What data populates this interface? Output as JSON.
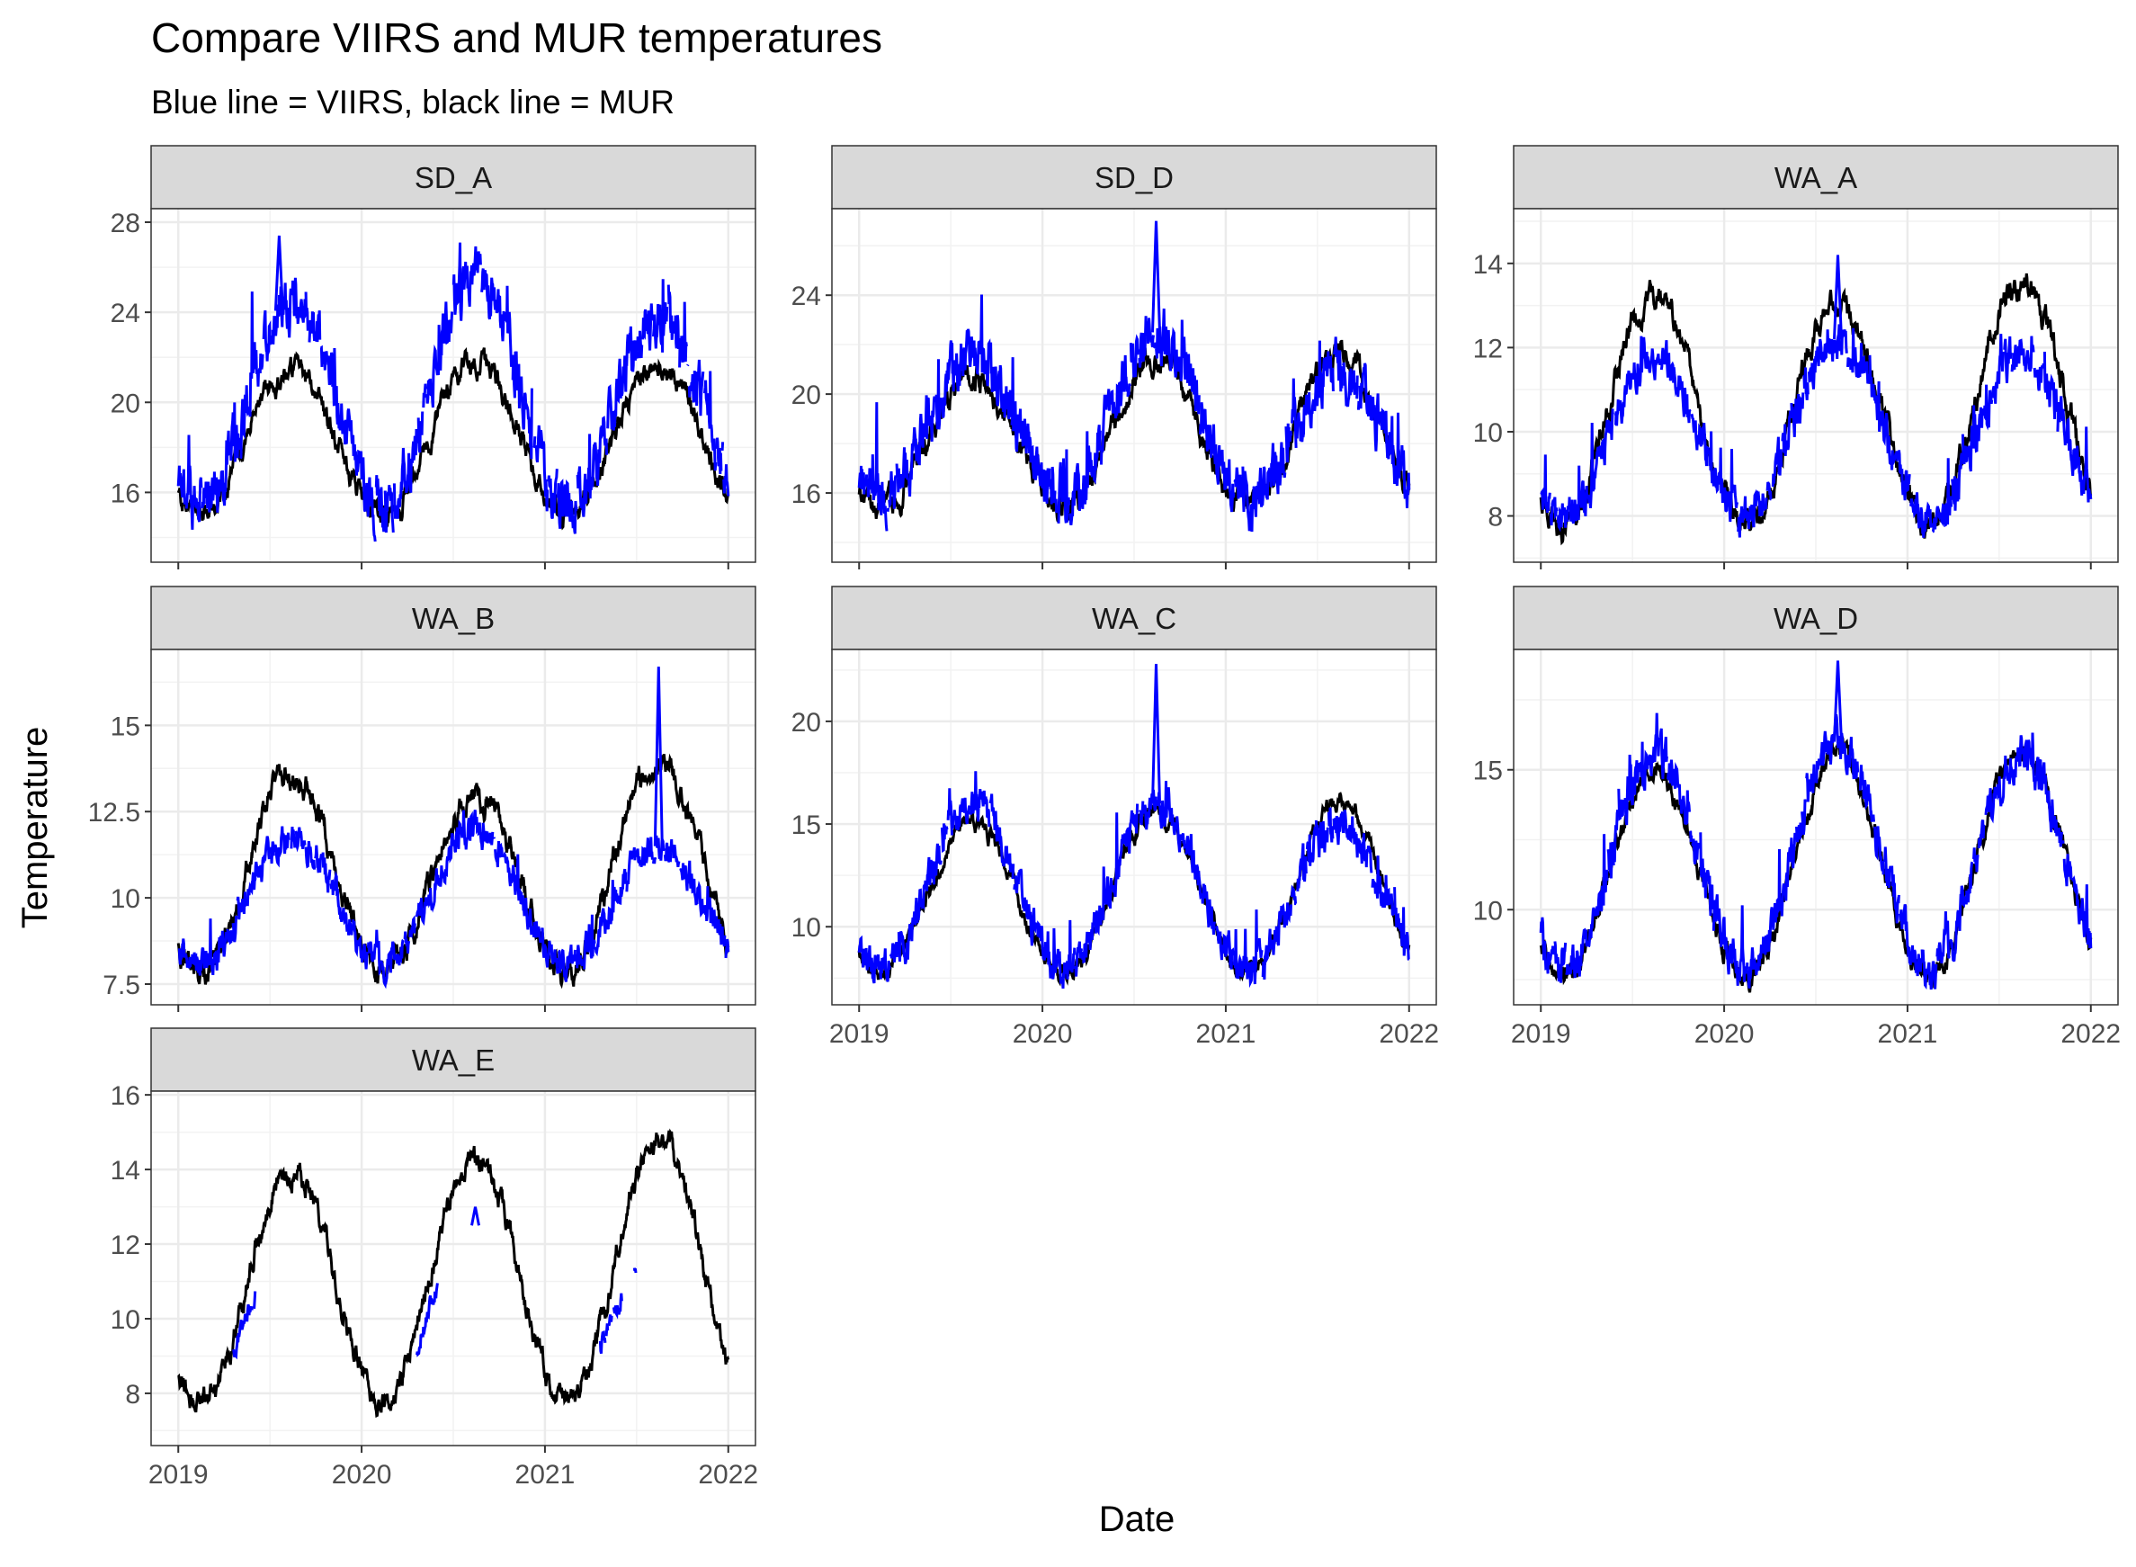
{
  "title": "Compare VIIRS and MUR temperatures",
  "subtitle": "Blue line = VIIRS, black line = MUR",
  "xlabel": "Date",
  "ylabel": "Temperature",
  "colors": {
    "viirs": "#0000ff",
    "mur": "#000000",
    "strip": "#d9d9d9",
    "grid": "#ebebeb",
    "panel_border": "#333333"
  },
  "chart_data": {
    "type": "line",
    "x_ticks": [
      "2019",
      "2020",
      "2021",
      "2022"
    ],
    "x_range": [
      "2019-01-01",
      "2022-01-01"
    ],
    "series_legend": {
      "VIIRS": "blue",
      "MUR": "black"
    },
    "panels": [
      {
        "name": "SD_A",
        "ylim": [
          12.9,
          28.6
        ],
        "yticks": [
          16,
          20,
          24,
          28
        ],
        "mur": {
          "base": 15.0,
          "peaks": [
            21.5,
            21.8,
            21.5
          ],
          "noise": 0.55
        },
        "viirs": {
          "base": 15.4,
          "peaks": [
            24.5,
            25.5,
            23.8
          ],
          "noise": 1.3,
          "spike": 27.4
        }
      },
      {
        "name": "SD_D",
        "ylim": [
          13.2,
          27.5
        ],
        "yticks": [
          16,
          20,
          24
        ],
        "mur": {
          "base": 15.4,
          "peaks": [
            20.8,
            21.5,
            21.5
          ],
          "noise": 0.55
        },
        "viirs": {
          "base": 15.8,
          "peaks": [
            21.5,
            22.5,
            20.8
          ],
          "noise": 1.2,
          "spike": 27.0
        }
      },
      {
        "name": "WA_A",
        "ylim": [
          6.9,
          15.3
        ],
        "yticks": [
          8,
          10,
          12,
          14
        ],
        "mur": {
          "base": 7.8,
          "peaks": [
            13.2,
            13.0,
            13.6
          ],
          "noise": 0.35
        },
        "viirs": {
          "base": 8.0,
          "peaks": [
            11.8,
            12.2,
            11.8
          ],
          "noise": 0.5,
          "spike": 14.2
        }
      },
      {
        "name": "WA_B",
        "ylim": [
          6.9,
          17.2
        ],
        "yticks": [
          7.5,
          10.0,
          12.5,
          15.0
        ],
        "mur": {
          "base": 7.9,
          "peaks": [
            13.5,
            13.0,
            14.0
          ],
          "noise": 0.4
        },
        "viirs": {
          "base": 8.1,
          "peaks": [
            11.8,
            12.0,
            11.5
          ],
          "noise": 0.5,
          "spike": 16.7
        }
      },
      {
        "name": "WA_C",
        "ylim": [
          6.2,
          23.5
        ],
        "yticks": [
          10,
          15,
          20
        ],
        "mur": {
          "base": 7.8,
          "peaks": [
            15.0,
            15.5,
            16.0
          ],
          "noise": 0.45
        },
        "viirs": {
          "base": 8.0,
          "peaks": [
            16.0,
            16.0,
            15.0
          ],
          "noise": 1.0,
          "spike": 22.8
        }
      },
      {
        "name": "WA_D",
        "ylim": [
          6.6,
          19.3
        ],
        "yticks": [
          10,
          15
        ],
        "mur": {
          "base": 7.6,
          "peaks": [
            15.0,
            15.5,
            15.8
          ],
          "noise": 0.4
        },
        "viirs": {
          "base": 7.9,
          "peaks": [
            15.5,
            16.0,
            15.5
          ],
          "noise": 0.8,
          "spike": 18.9
        }
      },
      {
        "name": "WA_E",
        "ylim": [
          6.6,
          16.1
        ],
        "yticks": [
          8,
          10,
          12,
          14,
          16
        ],
        "mur": {
          "base": 7.8,
          "peaks": [
            14.0,
            14.2,
            14.8
          ],
          "noise": 0.35
        },
        "viirs": {
          "base": 8.0,
          "peaks": [
            12.0,
            12.5,
            12.0
          ],
          "noise": 0.3,
          "spike": 13.0
        }
      }
    ]
  }
}
